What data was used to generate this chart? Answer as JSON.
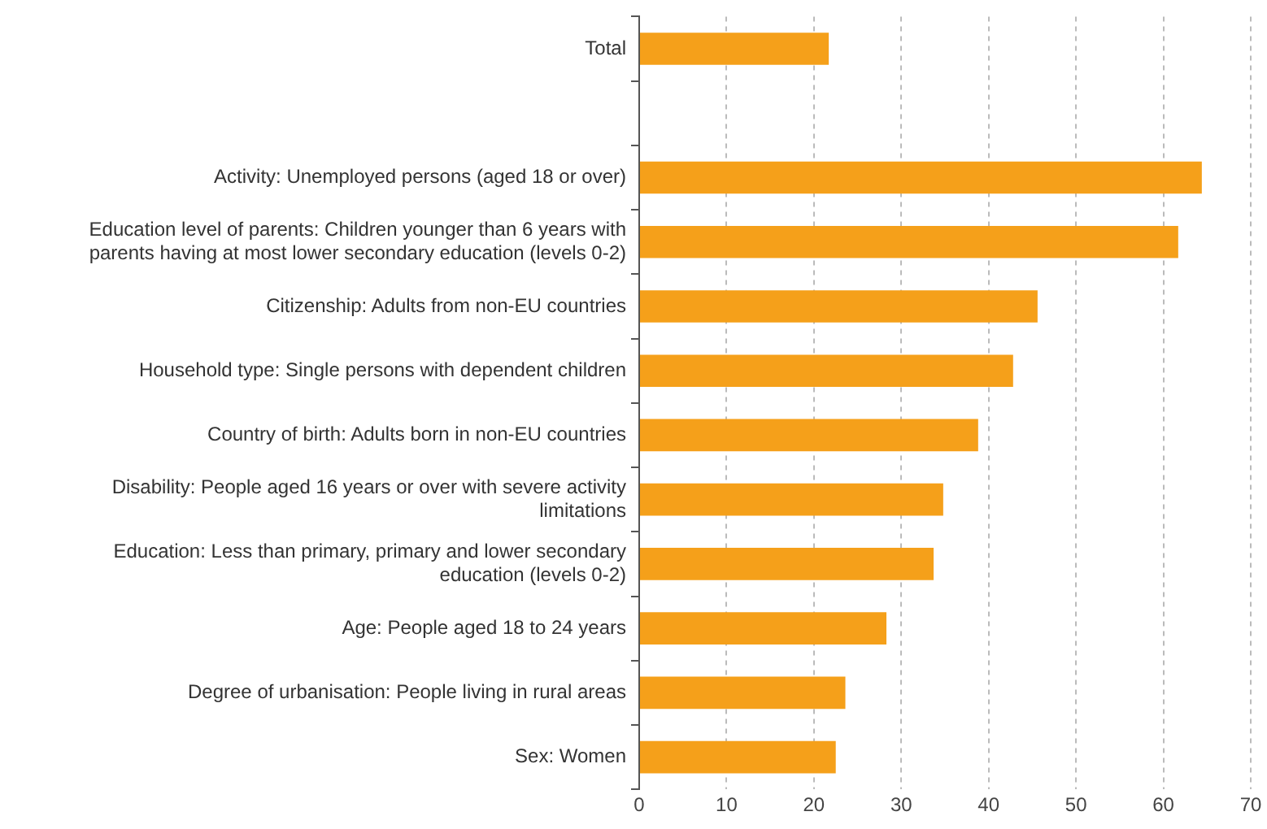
{
  "chart_data": {
    "type": "bar",
    "orientation": "horizontal",
    "color": "#f5a01a",
    "categories": [
      "Total",
      null,
      "Activity: Unemployed persons (aged 18 or over)",
      "Education level of parents: Children younger than 6 years with parents having at most lower secondary education (levels 0-2)",
      "Citizenship: Adults from non-EU countries",
      "Household type: Single persons with dependent children",
      "Country of birth: Adults born in non-EU countries",
      "Disability: People aged 16 years or over with severe activity limitations",
      "Education: Less than primary, primary and lower secondary education (levels 0-2)",
      "Age: People aged 18 to 24 years",
      "Degree of urbanisation: People living in rural areas",
      "Sex: Women"
    ],
    "values": [
      21.7,
      null,
      64.4,
      61.7,
      45.6,
      42.8,
      38.8,
      34.8,
      33.7,
      28.3,
      23.6,
      22.5
    ],
    "xlim": [
      0,
      70
    ],
    "xticks": [
      0,
      10,
      20,
      30,
      40,
      50,
      60,
      70
    ],
    "grid": "x",
    "legend": false
  }
}
